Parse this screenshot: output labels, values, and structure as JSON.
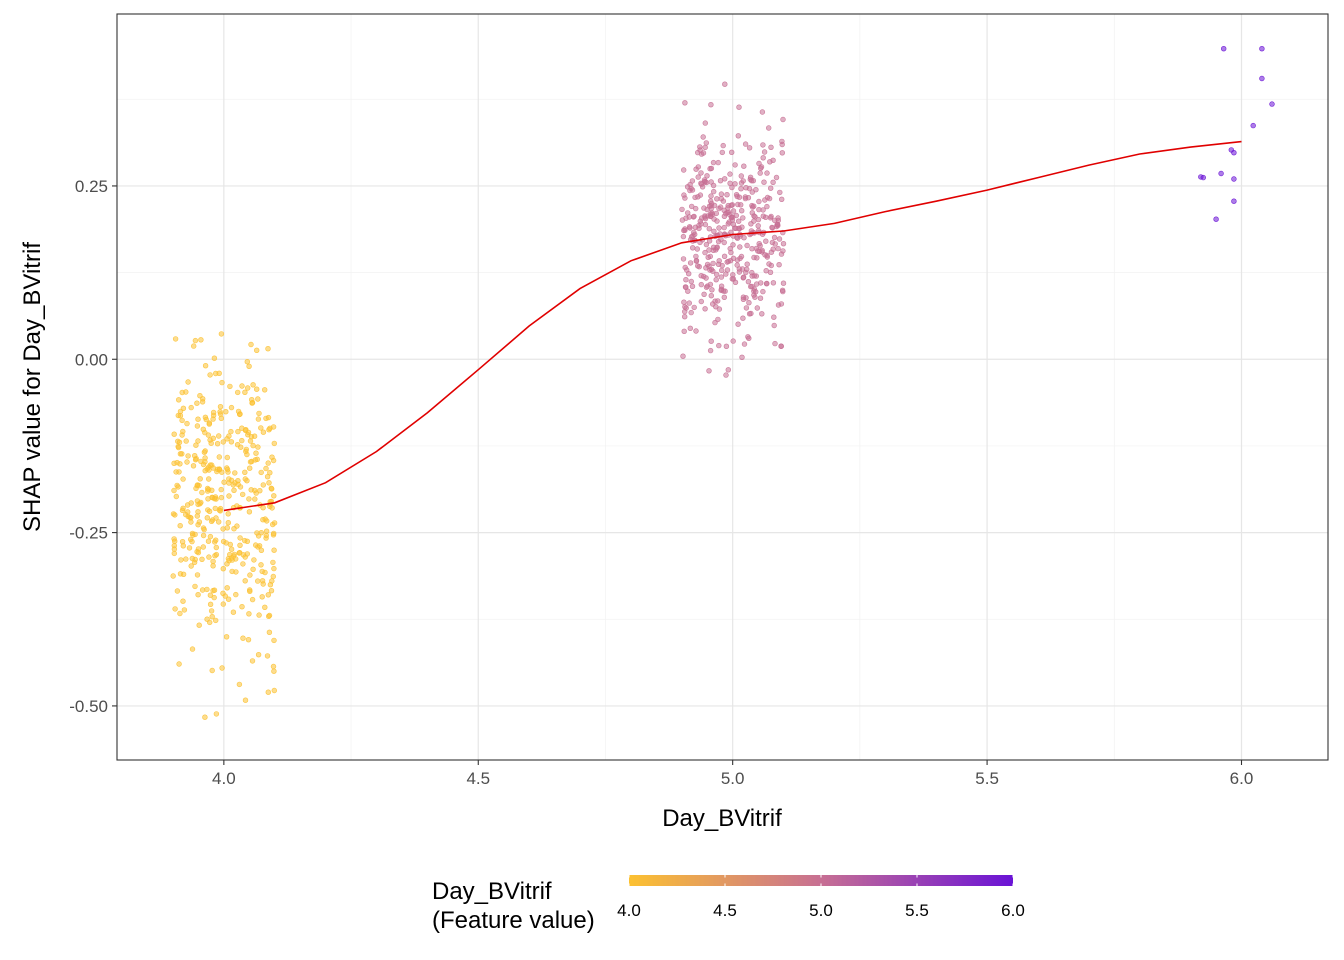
{
  "chart_data": {
    "type": "scatter",
    "title": "",
    "xlabel": "Day_BVitrif",
    "ylabel": "SHAP value for Day_BVitrif",
    "xlim": [
      3.79,
      6.17
    ],
    "ylim": [
      -0.578,
      0.498
    ],
    "x_ticks": [
      4.0,
      4.5,
      5.0,
      5.5,
      6.0
    ],
    "x_tick_labels": [
      "4.0",
      "4.5",
      "5.0",
      "5.5",
      "6.0"
    ],
    "y_ticks": [
      -0.5,
      -0.25,
      0.0,
      0.25
    ],
    "y_tick_labels": [
      "-0.50",
      "-0.25",
      "0.00",
      "0.25"
    ],
    "grid": true,
    "colors": {
      "low": "#fcc131",
      "mid": "#c76f93",
      "high": "#6a13d6",
      "smooth_line": "#e00000"
    },
    "point_groups": [
      {
        "feature_value": 4.0,
        "color": "#fcc131",
        "count": 420,
        "x_jitter": [
          3.9,
          4.1
        ],
        "y_mean": -0.205,
        "y_sd": 0.11,
        "y_range": [
          -0.52,
          0.04
        ]
      },
      {
        "feature_value": 5.0,
        "color": "#c76f93",
        "count": 440,
        "x_jitter": [
          4.9,
          5.1
        ],
        "y_mean": 0.18,
        "y_sd": 0.075,
        "y_range": [
          -0.03,
          0.41
        ]
      },
      {
        "feature_value": 6.0,
        "color": "#6a13d6",
        "points": [
          [
            5.965,
            0.448
          ],
          [
            6.04,
            0.448
          ],
          [
            6.04,
            0.405
          ],
          [
            6.06,
            0.368
          ],
          [
            6.023,
            0.337
          ],
          [
            5.98,
            0.302
          ],
          [
            5.985,
            0.298
          ],
          [
            5.92,
            0.263
          ],
          [
            5.925,
            0.262
          ],
          [
            5.96,
            0.268
          ],
          [
            5.985,
            0.26
          ],
          [
            5.985,
            0.228
          ],
          [
            5.95,
            0.202
          ]
        ]
      }
    ],
    "smooth_line": {
      "x": [
        4.0,
        4.1,
        4.2,
        4.3,
        4.4,
        4.5,
        4.6,
        4.7,
        4.8,
        4.9,
        5.0,
        5.1,
        5.2,
        5.3,
        5.4,
        5.5,
        5.6,
        5.7,
        5.8,
        5.9,
        6.0
      ],
      "y": [
        -0.218,
        -0.207,
        -0.178,
        -0.133,
        -0.077,
        -0.015,
        0.048,
        0.102,
        0.142,
        0.168,
        0.18,
        0.185,
        0.196,
        0.213,
        0.228,
        0.244,
        0.262,
        0.28,
        0.296,
        0.306,
        0.314
      ]
    },
    "legend": {
      "title_lines": [
        "Day_BVitrif",
        "(Feature value)"
      ],
      "position": "bottom",
      "type": "colorbar",
      "range": [
        4.0,
        6.0
      ],
      "ticks": [
        4.0,
        4.5,
        5.0,
        5.5,
        6.0
      ],
      "tick_labels": [
        "4.0",
        "4.5",
        "5.0",
        "5.5",
        "6.0"
      ]
    }
  }
}
